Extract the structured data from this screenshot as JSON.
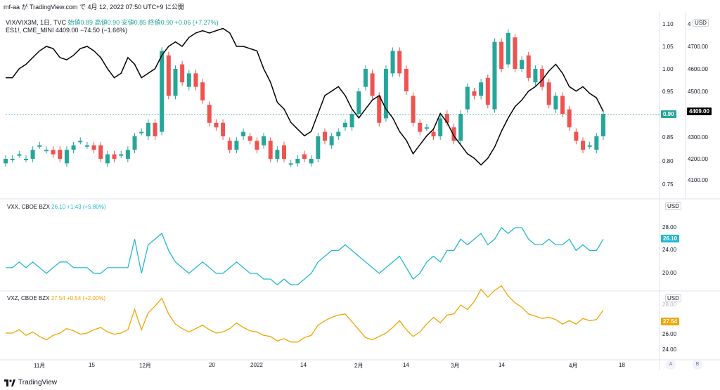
{
  "top_caption": "mf-aa が TradingView.com で 4月 12, 2022 07:50 UTC+9 に公開",
  "header": {
    "line1_symbol": "VIX/VIX3M, 1日, TVC",
    "line1_ohlc": "始値0.89 高値0.90 安値0.85 終値0.90 +0.06 (+7.27%)",
    "line2_symbol": "ES1!, CME_MINI",
    "line2_value": "4409.00 −74.50 (−1.66%)"
  },
  "pane1": {
    "left_axis": [
      "1.10",
      "1.05",
      "1.00",
      "0.95",
      "0.90",
      "0.85",
      "0.80",
      "0.75"
    ],
    "right_axis": [
      "4",
      "4700.00",
      "4600.00",
      "4500.00",
      "4300.00",
      "4200.00",
      "4100.00"
    ],
    "currency": "USD",
    "last_ratio_tag": "0.90",
    "last_es_tag": "4409.00"
  },
  "pane2": {
    "title": "VXX, CBOE BZX",
    "value": "26.10 +1.43 (+5.80%)",
    "axis": [
      "28.00",
      "24.00",
      "20.00"
    ],
    "currency": "USD",
    "last_tag": "26.10"
  },
  "pane3": {
    "title": "VXZ, CBOE BZX",
    "value": "27.54 +0.54 (+2.00%)",
    "axis": [
      "28.00",
      "26.00",
      "24.00"
    ],
    "currency": "USD",
    "last_tag": "27.54"
  },
  "time_axis": [
    "11月",
    "15",
    "12月",
    "20",
    "2022",
    "14",
    "2月",
    "14",
    "3月",
    "14",
    "4月",
    "18"
  ],
  "footer": {
    "brand": "TradingView"
  },
  "corner_buttons": [
    "A",
    "B"
  ],
  "colors": {
    "up": "#26a69a",
    "down": "#ef5350",
    "es_line": "#000000",
    "vxx": "#22b8d1",
    "vxz": "#f0a500"
  },
  "chart_data": [
    {
      "type": "line",
      "name": "ES1! close (approx.)",
      "values": [
        4560,
        4560,
        4600,
        4620,
        4650,
        4680,
        4700,
        4690,
        4650,
        4640,
        4660,
        4690,
        4700,
        4680,
        4650,
        4600,
        4560,
        4580,
        4650,
        4620,
        4560,
        4580,
        4600,
        4660,
        4700,
        4720,
        4700,
        4740,
        4760,
        4770,
        4760,
        4770,
        4780,
        4760,
        4700,
        4700,
        4690,
        4680,
        4600,
        4540,
        4450,
        4420,
        4360,
        4330,
        4300,
        4320,
        4400,
        4480,
        4500,
        4520,
        4480,
        4420,
        4380,
        4420,
        4460,
        4480,
        4420,
        4380,
        4320,
        4280,
        4220,
        4260,
        4300,
        4330,
        4400,
        4360,
        4300,
        4260,
        4220,
        4200,
        4170,
        4200,
        4250,
        4320,
        4380,
        4430,
        4460,
        4500,
        4520,
        4550,
        4590,
        4620,
        4580,
        4520,
        4500,
        4520,
        4490,
        4470,
        4409
      ]
    },
    {
      "type": "line",
      "name": "VXX",
      "values": [
        21,
        21,
        22,
        21,
        22,
        21,
        20,
        21,
        22,
        22,
        21,
        21,
        21,
        20,
        20,
        21,
        21,
        21,
        21,
        26,
        20,
        25,
        26,
        27,
        24,
        22,
        21,
        20,
        21,
        22,
        21,
        20,
        20,
        21,
        22,
        21,
        20,
        20,
        19,
        19,
        18,
        19,
        18,
        18,
        19,
        20,
        22,
        23,
        24,
        24,
        25,
        24,
        23,
        22,
        21,
        20,
        21,
        22,
        23,
        21,
        19,
        20,
        22,
        23,
        22,
        24,
        24,
        26,
        25,
        26,
        27,
        25,
        26,
        28,
        27,
        28,
        28,
        26,
        25,
        25,
        26,
        25,
        25,
        26,
        24,
        25,
        24,
        24,
        26
      ]
    },
    {
      "type": "line",
      "name": "VXZ",
      "values": [
        25.5,
        25.5,
        25.8,
        25.3,
        25.6,
        25.2,
        24.9,
        25.3,
        25.5,
        25.9,
        25.7,
        25.4,
        25.5,
        25.8,
        26.0,
        25.6,
        25.4,
        25.5,
        25.8,
        27.6,
        25.8,
        27.3,
        27.9,
        28.6,
        27.2,
        26.3,
        25.9,
        25.6,
        25.9,
        26.2,
        25.8,
        25.5,
        25.6,
        25.9,
        26.4,
        26.0,
        25.7,
        25.6,
        25.3,
        25.2,
        24.8,
        25.0,
        24.7,
        24.7,
        25.1,
        25.3,
        26.2,
        26.6,
        26.9,
        27.1,
        27.2,
        26.5,
        25.8,
        25.1,
        24.9,
        25.2,
        25.5,
        26.0,
        26.6,
        25.8,
        25.2,
        25.6,
        26.3,
        26.9,
        26.4,
        27.1,
        27.2,
        28.0,
        27.6,
        28.3,
        29.4,
        28.7,
        29.3,
        29.7,
        28.8,
        28.2,
        27.8,
        27.2,
        27.0,
        26.8,
        26.9,
        26.7,
        26.3,
        26.6,
        26.3,
        26.8,
        26.6,
        26.7,
        27.54
      ]
    }
  ]
}
